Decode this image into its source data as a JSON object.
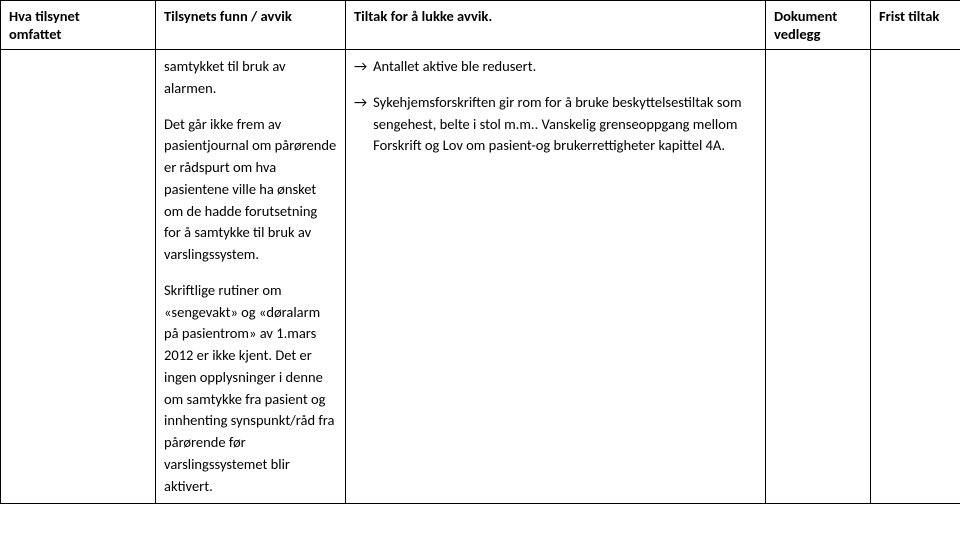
{
  "header": {
    "row1": {
      "c1": "Hva tilsynet",
      "c2": "Tilsynets funn / avvik",
      "c3": "Tiltak for å lukke avvik.",
      "c4": "Dokument",
      "c5": "Frist tiltak"
    },
    "row2": {
      "c1": "omfattet",
      "c2": "",
      "c3": "",
      "c4": "vedlegg",
      "c5": ""
    }
  },
  "body": {
    "col2": {
      "p1": "samtykket til bruk av alarmen.",
      "p2": "Det går ikke frem av pasientjournal om pårørende er rådspurt om hva pasientene ville ha ønsket om de hadde forutsetning for å samtykke til bruk av varslingssystem.",
      "p3": "Skriftlige rutiner om «sengevakt» og «døralarm på pasientrom» av 1.mars 2012 er ikke kjent. Det er ingen opplysninger i denne om samtykke fra pasient og innhenting synspunkt/råd fra pårørende før varslingssystemet blir aktivert."
    },
    "col3": {
      "item1": "Antallet aktive ble redusert.",
      "item2": "Sykehjemsforskriften gir rom for å bruke beskyttelsestiltak som sengehest, belte i stol m.m.. Vanskelig grenseoppgang mellom Forskrift og Lov om pasient-og brukerrettigheter kapittel 4A."
    }
  },
  "glyph": {
    "arrow": "→"
  }
}
